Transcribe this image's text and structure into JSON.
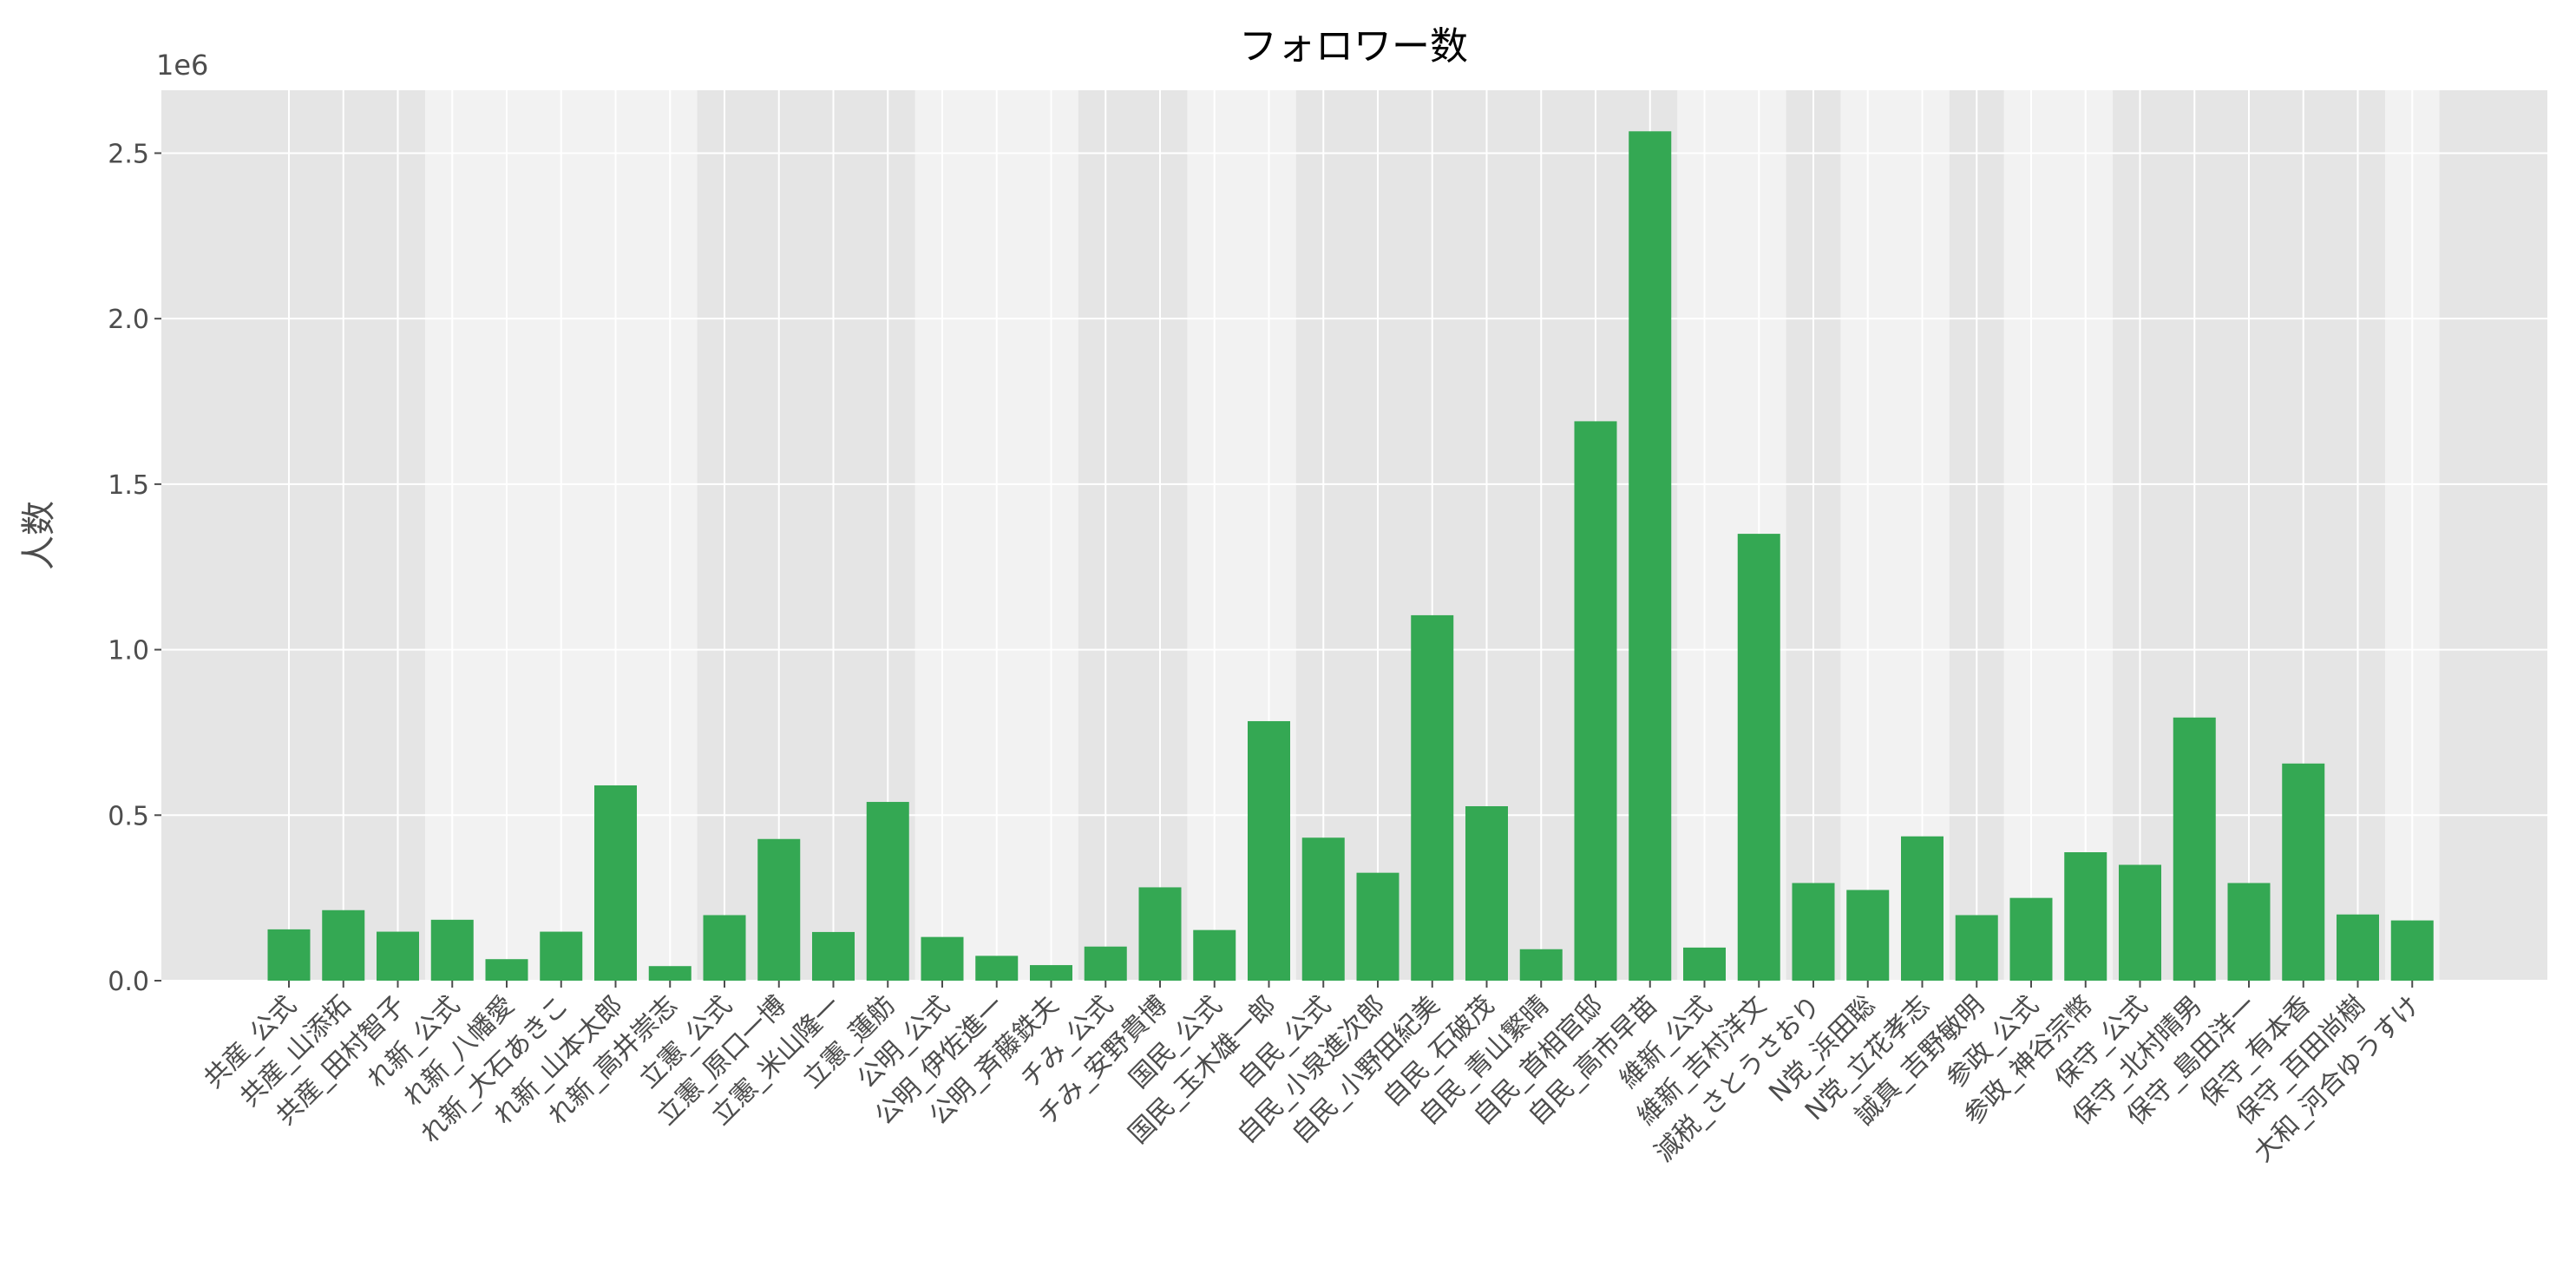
{
  "chart_data": {
    "type": "bar",
    "title": "フォロワー数",
    "ylabel": "人数",
    "y_offset_label": "1e6",
    "categories": [
      "共産_公式",
      "共産_山添拓",
      "共産_田村智子",
      "れ新_公式",
      "れ新_八幡愛",
      "れ新_大石あきこ",
      "れ新_山本太郎",
      "れ新_高井崇志",
      "立憲_公式",
      "立憲_原口一博",
      "立憲_米山隆一",
      "立憲_蓮舫",
      "公明_公式",
      "公明_伊佐進一",
      "公明_斉藤鉄夫",
      "チみ_公式",
      "チみ_安野貴博",
      "国民_公式",
      "国民_玉木雄一郎",
      "自民_公式",
      "自民_小泉進次郎",
      "自民_小野田紀美",
      "自民_石破茂",
      "自民_青山繁晴",
      "自民_首相官邸",
      "自民_高市早苗",
      "維新_公式",
      "維新_吉村洋文",
      "減税_さとうさおり",
      "N党_浜田聡",
      "N党_立花孝志",
      "誠真_吉野敏明",
      "参政_公式",
      "参政_神谷宗幣",
      "保守_公式",
      "保守_北村晴男",
      "保守_島田洋一",
      "保守_有本香",
      "保守_百田尚樹",
      "大和_河合ゆうすけ"
    ],
    "values": [
      0.155,
      0.213,
      0.148,
      0.184,
      0.065,
      0.148,
      0.59,
      0.044,
      0.198,
      0.428,
      0.147,
      0.54,
      0.132,
      0.075,
      0.047,
      0.103,
      0.282,
      0.153,
      0.784,
      0.432,
      0.326,
      1.104,
      0.527,
      0.095,
      1.69,
      2.566,
      0.1,
      1.35,
      0.295,
      0.274,
      0.436,
      0.198,
      0.25,
      0.388,
      0.35,
      0.795,
      0.295,
      0.656,
      0.2,
      0.182
    ],
    "color": "#34a853",
    "ylim": [
      0,
      2.69
    ],
    "yticks": [
      {
        "value": 0,
        "label": "0.0"
      },
      0.5,
      {
        "value": 1,
        "label": "1.0"
      },
      1.5,
      {
        "value": 2,
        "label": "2.0"
      },
      2.5
    ],
    "grid": true
  }
}
